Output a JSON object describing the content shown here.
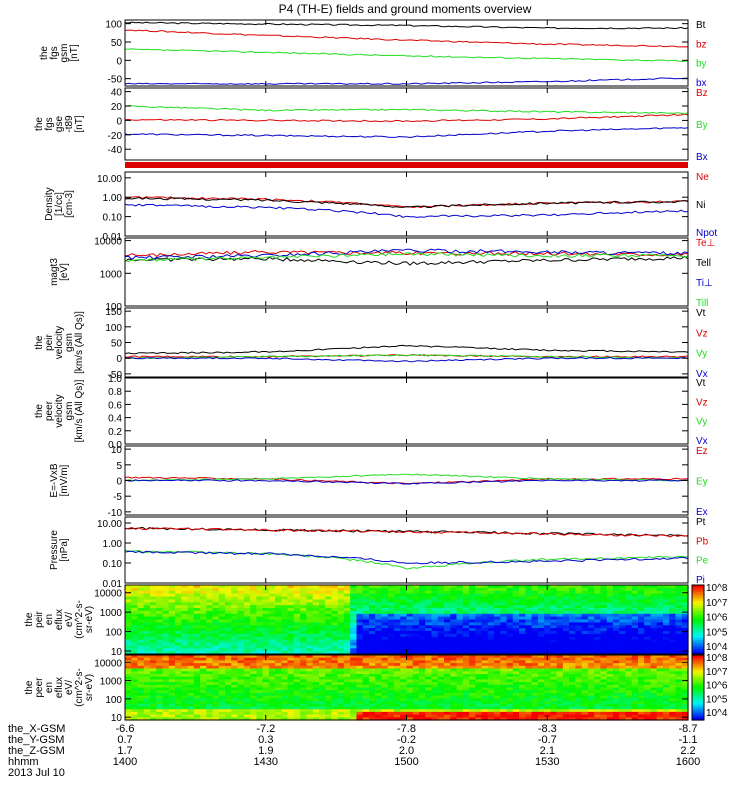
{
  "title": "P4 (TH-E) fields and ground moments overview",
  "date": "2013 Jul 10",
  "colors": {
    "black": "#000000",
    "red": "#dd0000",
    "green": "#22dd22",
    "blue": "#0000cc"
  },
  "chart_data": [
    {
      "type": "line",
      "ylabel": [
        "the",
        "fgs",
        "gsm",
        "[nT]"
      ],
      "ylim": [
        -70,
        110
      ],
      "yticks": [
        {
          "v": 100,
          "t": "100"
        },
        {
          "v": 50,
          "t": "50"
        },
        {
          "v": 0,
          "t": "0"
        },
        {
          "v": -50,
          "t": "-50"
        }
      ],
      "x": [
        1400,
        1430,
        1500,
        1530,
        1600
      ],
      "series": [
        {
          "name": "Bt",
          "color": "black",
          "values": [
            103,
            99,
            95,
            88,
            88
          ]
        },
        {
          "name": "bz",
          "color": "red",
          "values": [
            83,
            68,
            55,
            44,
            38
          ]
        },
        {
          "name": "by",
          "color": "green",
          "values": [
            30,
            22,
            12,
            5,
            -2
          ]
        },
        {
          "name": "bx",
          "color": "blue",
          "values": [
            -64,
            -64,
            -64,
            -58,
            -48
          ]
        }
      ]
    },
    {
      "type": "line",
      "ylabel": [
        "the",
        "fgs",
        "gse",
        "-t89",
        "[nT]"
      ],
      "ylim": [
        -55,
        45
      ],
      "yticks": [
        {
          "v": 40,
          "t": "40"
        },
        {
          "v": 20,
          "t": "20"
        },
        {
          "v": 0,
          "t": "0"
        },
        {
          "v": -20,
          "t": "-20"
        },
        {
          "v": -40,
          "t": "-40"
        }
      ],
      "x": [
        1400,
        1430,
        1500,
        1530,
        1600
      ],
      "series": [
        {
          "name": "Bz",
          "color": "red",
          "values": [
            1,
            0,
            -1,
            2,
            8
          ]
        },
        {
          "name": "By",
          "color": "green",
          "values": [
            20,
            14,
            15,
            12,
            10
          ]
        },
        {
          "name": "Bx",
          "color": "blue",
          "values": [
            -19,
            -21,
            -23,
            -15,
            -10
          ]
        }
      ]
    },
    {
      "type": "line",
      "ylabel": [
        "Density",
        "[1/cc]",
        "[cm-3]"
      ],
      "scale": "log",
      "ylim": [
        0.01,
        20
      ],
      "yticks": [
        {
          "v": 10,
          "t": "10.00"
        },
        {
          "v": 1,
          "t": "1.00"
        },
        {
          "v": 0.1,
          "t": "0.10"
        },
        {
          "v": 0.01,
          "t": "0.01"
        }
      ],
      "x": [
        1400,
        1430,
        1500,
        1530,
        1600
      ],
      "series": [
        {
          "name": "Ne",
          "color": "red",
          "values": [
            1.0,
            0.8,
            0.3,
            0.5,
            0.6
          ]
        },
        {
          "name": "Ni",
          "color": "black",
          "values": [
            0.9,
            0.7,
            0.3,
            0.5,
            0.6
          ]
        },
        {
          "name": "Npot",
          "color": "blue",
          "values": [
            0.4,
            0.3,
            0.1,
            0.12,
            0.2
          ]
        }
      ]
    },
    {
      "type": "line",
      "ylabel": [
        "magt3",
        "[eV]"
      ],
      "scale": "log",
      "ylim": [
        100,
        12000
      ],
      "yticks": [
        {
          "v": 10000,
          "t": "10000"
        },
        {
          "v": 1000,
          "t": "1000"
        },
        {
          "v": 100,
          "t": "100"
        }
      ],
      "x": [
        1400,
        1430,
        1500,
        1530,
        1600
      ],
      "series": [
        {
          "name": "Te⊥",
          "color": "red",
          "values": [
            3500,
            4500,
            4200,
            4000,
            3800
          ]
        },
        {
          "name": "Tell",
          "color": "black",
          "values": [
            2600,
            2800,
            2000,
            2500,
            3000
          ]
        },
        {
          "name": "Ti⊥",
          "color": "blue",
          "values": [
            3000,
            3500,
            5000,
            4500,
            4000
          ]
        },
        {
          "name": "Till",
          "color": "green",
          "values": [
            2500,
            3000,
            4000,
            3500,
            3500
          ]
        }
      ]
    },
    {
      "type": "line",
      "ylabel": [
        "the",
        "peir",
        "velocity",
        "gsm",
        "[km/s (All Qs)]"
      ],
      "ylim": [
        -60,
        160
      ],
      "yticks": [
        {
          "v": 150,
          "t": "150"
        },
        {
          "v": 100,
          "t": "100"
        },
        {
          "v": 50,
          "t": "50"
        },
        {
          "v": 0,
          "t": "0"
        },
        {
          "v": -50,
          "t": "-50"
        }
      ],
      "x": [
        1400,
        1430,
        1500,
        1530,
        1600
      ],
      "series": [
        {
          "name": "Vt",
          "color": "black",
          "values": [
            15,
            20,
            40,
            25,
            20
          ]
        },
        {
          "name": "Vz",
          "color": "red",
          "values": [
            5,
            5,
            10,
            5,
            5
          ]
        },
        {
          "name": "Vy",
          "color": "green",
          "values": [
            0,
            5,
            10,
            5,
            0
          ]
        },
        {
          "name": "Vx",
          "color": "blue",
          "values": [
            0,
            0,
            -10,
            0,
            0
          ]
        }
      ]
    },
    {
      "type": "line",
      "ylabel": [
        "the",
        "peer",
        "velocity",
        "gsm",
        "[km/s (All Qs)]"
      ],
      "ylim": [
        0,
        1
      ],
      "yticks": [
        {
          "v": 1,
          "t": "1.0"
        },
        {
          "v": 0.8,
          "t": "0.8"
        },
        {
          "v": 0.6,
          "t": "0.6"
        },
        {
          "v": 0.4,
          "t": "0.4"
        },
        {
          "v": 0.2,
          "t": "0.2"
        },
        {
          "v": 0,
          "t": "0.0"
        }
      ],
      "x": [],
      "series": [
        {
          "name": "Vt",
          "color": "black",
          "values": []
        },
        {
          "name": "Vz",
          "color": "red",
          "values": []
        },
        {
          "name": "Vy",
          "color": "green",
          "values": []
        },
        {
          "name": "Vx",
          "color": "blue",
          "values": []
        }
      ]
    },
    {
      "type": "line",
      "ylabel": [
        "E=-VxB",
        "[mV/m]"
      ],
      "ylim": [
        -11,
        11
      ],
      "yticks": [
        {
          "v": 10,
          "t": "10"
        },
        {
          "v": 5,
          "t": "5"
        },
        {
          "v": 0,
          "t": "0"
        },
        {
          "v": -5,
          "t": "-5"
        },
        {
          "v": -10,
          "t": "-10"
        }
      ],
      "x": [
        1400,
        1430,
        1500,
        1530,
        1600
      ],
      "series": [
        {
          "name": "Ez",
          "color": "red",
          "values": [
            1,
            0.5,
            -1,
            0.5,
            0.5
          ]
        },
        {
          "name": "Ey",
          "color": "green",
          "values": [
            0,
            0.5,
            2,
            0.5,
            0
          ]
        },
        {
          "name": "Ex",
          "color": "blue",
          "values": [
            0,
            0,
            -1,
            0,
            0
          ]
        }
      ]
    },
    {
      "type": "line",
      "ylabel": [
        "Pressure",
        "[nPa]"
      ],
      "scale": "log",
      "ylim": [
        0.01,
        20
      ],
      "yticks": [
        {
          "v": 10,
          "t": "10.00"
        },
        {
          "v": 1,
          "t": "1.00"
        },
        {
          "v": 0.1,
          "t": "0.10"
        },
        {
          "v": 0.01,
          "t": "0.01"
        }
      ],
      "x": [
        1400,
        1430,
        1500,
        1530,
        1600
      ],
      "series": [
        {
          "name": "Pt",
          "color": "black",
          "values": [
            5.5,
            4.5,
            3.8,
            3.0,
            2.3
          ]
        },
        {
          "name": "Pb",
          "color": "red",
          "values": [
            5.5,
            4.4,
            3.7,
            2.9,
            2.2
          ]
        },
        {
          "name": "Pe",
          "color": "green",
          "values": [
            0.4,
            0.3,
            0.05,
            0.15,
            0.2
          ]
        },
        {
          "name": "Pi",
          "color": "blue",
          "values": [
            0.35,
            0.3,
            0.1,
            0.12,
            0.18
          ]
        }
      ]
    },
    {
      "type": "heatmap",
      "ylabel": [
        "the",
        "peir",
        "en",
        "eflux",
        "eV/",
        "(cm^2-s-",
        "sr-eV)"
      ],
      "scale": "log",
      "ylim": [
        7,
        25000
      ],
      "yticks": [
        {
          "v": 10000,
          "t": "10000"
        },
        {
          "v": 1000,
          "t": "1000"
        },
        {
          "v": 100,
          "t": "100"
        },
        {
          "v": 10,
          "t": "10"
        }
      ],
      "colorbar": [
        "10^8",
        "10^7",
        "10^6",
        "10^5",
        "10^4"
      ]
    },
    {
      "type": "heatmap",
      "ylabel": [
        "the",
        "peer",
        "en",
        "eflux",
        "eV/",
        "(cm^2-s-",
        "sr-eV)"
      ],
      "scale": "log",
      "ylim": [
        7,
        25000
      ],
      "yticks": [
        {
          "v": 10000,
          "t": "10000"
        },
        {
          "v": 1000,
          "t": "1000"
        },
        {
          "v": 100,
          "t": "100"
        },
        {
          "v": 10,
          "t": "10"
        }
      ],
      "colorbar": [
        "10^8",
        "10^7",
        "10^6",
        "10^5",
        "10^4"
      ]
    }
  ],
  "xaxis": {
    "ticks": [
      "1400",
      "1430",
      "1500",
      "1530",
      "1600"
    ],
    "rows": [
      {
        "label": "the_X-GSM",
        "values": [
          "-6.6",
          "-7.2",
          "-7.8",
          "-8.3",
          "-8.7"
        ]
      },
      {
        "label": "the_Y-GSM",
        "values": [
          "0.7",
          "0.3",
          "-0.2",
          "-0.7",
          "-1.1"
        ]
      },
      {
        "label": "the_Z-GSM",
        "values": [
          "1.7",
          "1.9",
          "2.0",
          "2.1",
          "2.2"
        ]
      },
      {
        "label": "hhmm",
        "values": [
          "1400",
          "1430",
          "1500",
          "1530",
          "1600"
        ]
      }
    ]
  }
}
